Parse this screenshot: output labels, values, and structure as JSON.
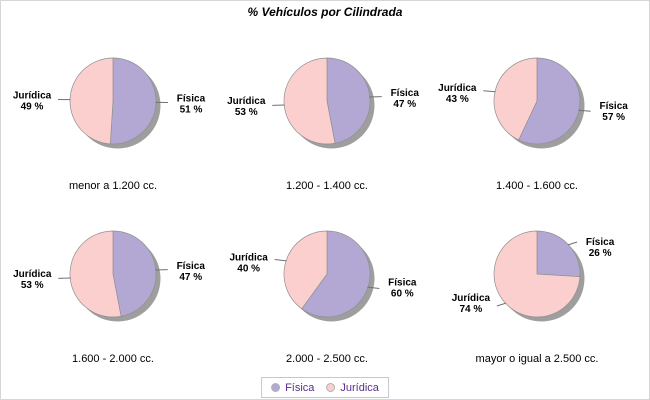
{
  "chart_data": {
    "type": "pie",
    "title": "% Vehículos por Cilindrada",
    "unit": "%",
    "legend_position": "bottom-center",
    "shadow": true,
    "series": [
      {
        "name": "Física",
        "color": "#b2a8d3"
      },
      {
        "name": "Jurídica",
        "color": "#fccfcf"
      }
    ],
    "pies": [
      {
        "category": "menor a 1.200 cc.",
        "values": [
          51,
          49
        ]
      },
      {
        "category": "1.200 - 1.400 cc.",
        "values": [
          47,
          53
        ]
      },
      {
        "category": "1.400 - 1.600 cc.",
        "values": [
          57,
          43
        ]
      },
      {
        "category": "1.600 - 2.000 cc.",
        "values": [
          47,
          53
        ]
      },
      {
        "category": "2.000 - 2.500 cc.",
        "values": [
          60,
          40
        ]
      },
      {
        "category": "mayor o igual a 2.500 cc.",
        "values": [
          26,
          74
        ]
      }
    ]
  },
  "style": {
    "background": "#ffffff",
    "title_color": "#000000",
    "slice_label_color": "#000000",
    "category_label_color": "#000000",
    "legend_text_color": "#5c2d91",
    "legend_border_color": "#c6c6d2",
    "shadow_color": "#9e9e9e",
    "slice_outline_color": "#909090",
    "leader_line_color": "#707070"
  }
}
